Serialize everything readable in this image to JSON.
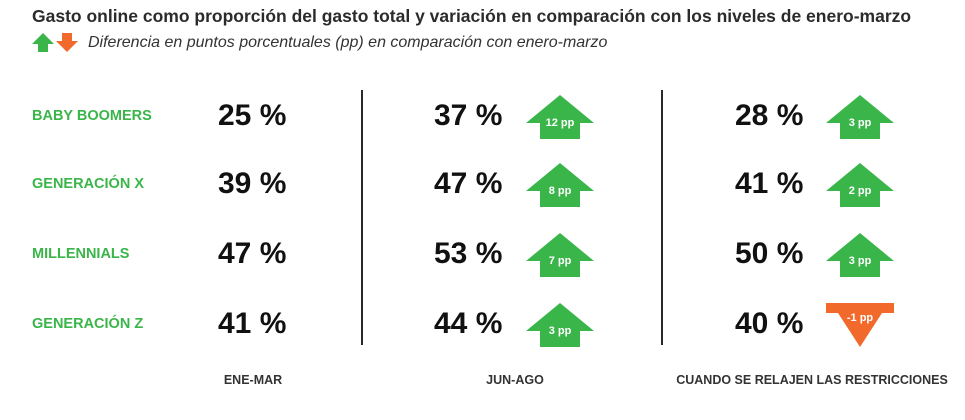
{
  "chart_data": {
    "type": "table",
    "title": "Gasto online como proporción del gasto total y variación en comparación con los niveles de enero-marzo",
    "legend_text": "Diferencia en puntos porcentuales (pp) en comparación con enero-marzo",
    "value_unit": "%",
    "change_unit": "pp",
    "columns": [
      "ENE-MAR",
      "JUN-AGO",
      "CUANDO SE RELAJEN LAS RESTRICCIONES"
    ],
    "rows": [
      {
        "label": "BABY BOOMERS",
        "values": [
          "25 %",
          "37 %",
          "28 %"
        ],
        "changes": [
          null,
          "12 pp",
          "3 pp"
        ],
        "directions": [
          null,
          "up",
          "up"
        ]
      },
      {
        "label": "GENERACIÓN X",
        "values": [
          "39 %",
          "47 %",
          "41 %"
        ],
        "changes": [
          null,
          "8 pp",
          "2 pp"
        ],
        "directions": [
          null,
          "up",
          "up"
        ]
      },
      {
        "label": "MILLENNIALS",
        "values": [
          "47 %",
          "53 %",
          "50 %"
        ],
        "changes": [
          null,
          "7 pp",
          "3 pp"
        ],
        "directions": [
          null,
          "up",
          "up"
        ]
      },
      {
        "label": "GENERACIÓN Z",
        "values": [
          "41 %",
          "44 %",
          "40 %"
        ],
        "changes": [
          null,
          "3 pp",
          "-1 pp"
        ],
        "directions": [
          null,
          "up",
          "down"
        ]
      }
    ],
    "colors": {
      "up": "#3ab54a",
      "down": "#f26a2b",
      "label": "#3ab54a"
    }
  }
}
